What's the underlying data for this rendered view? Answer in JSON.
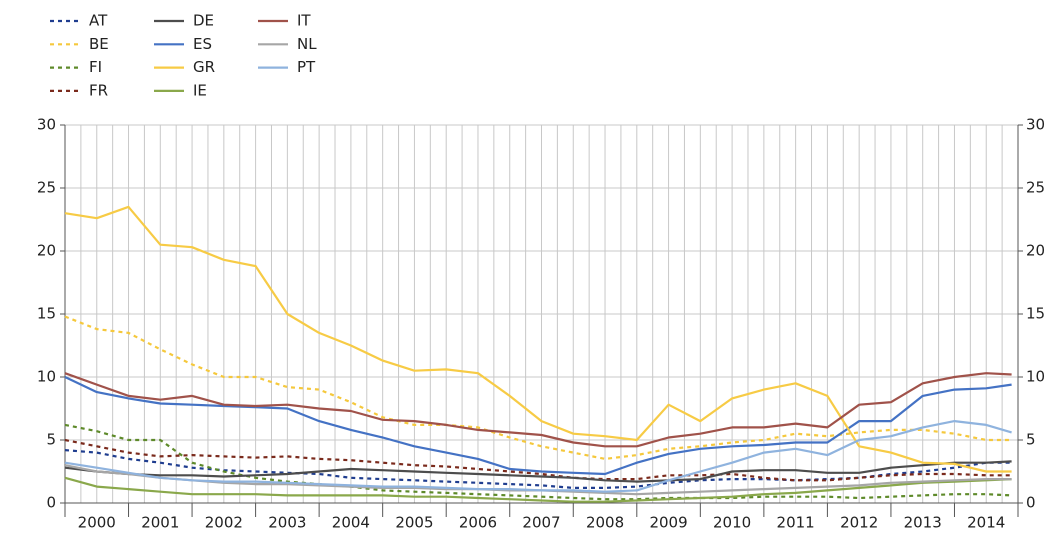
{
  "chart_data": {
    "type": "line",
    "x": [
      2000,
      2000.5,
      2001,
      2001.5,
      2002,
      2002.5,
      2003,
      2003.5,
      2004,
      2004.5,
      2005,
      2005.5,
      2006,
      2006.5,
      2007,
      2007.5,
      2008,
      2008.5,
      2009,
      2009.5,
      2010,
      2010.5,
      2011,
      2011.5,
      2012,
      2012.5,
      2013,
      2013.5,
      2014,
      2014.5,
      2014.9
    ],
    "xlim": [
      2000,
      2015
    ],
    "xticks": [
      {
        "value": 2000.5,
        "label": "2000"
      },
      {
        "value": 2001.5,
        "label": "2001"
      },
      {
        "value": 2002.5,
        "label": "2002"
      },
      {
        "value": 2003.5,
        "label": "2003"
      },
      {
        "value": 2004.5,
        "label": "2004"
      },
      {
        "value": 2005.5,
        "label": "2005"
      },
      {
        "value": 2006.5,
        "label": "2006"
      },
      {
        "value": 2007.5,
        "label": "2007"
      },
      {
        "value": 2008.5,
        "label": "2008"
      },
      {
        "value": 2009.5,
        "label": "2009"
      },
      {
        "value": 2010.5,
        "label": "2010"
      },
      {
        "value": 2011.5,
        "label": "2011"
      },
      {
        "value": 2012.5,
        "label": "2012"
      },
      {
        "value": 2013.5,
        "label": "2013"
      },
      {
        "value": 2014.5,
        "label": "2014"
      }
    ],
    "ylim": [
      0,
      30
    ],
    "yticks": [
      0,
      5,
      10,
      15,
      20,
      25,
      30
    ],
    "y2lim": [
      0,
      30
    ],
    "y2ticks": [
      0,
      5,
      10,
      15,
      20,
      25,
      30
    ],
    "grid": true,
    "series": [
      {
        "name": "AT",
        "color": "#1f3d8f",
        "dashed": true,
        "values": [
          4.2,
          4.0,
          3.5,
          3.2,
          2.8,
          2.6,
          2.5,
          2.4,
          2.3,
          2.0,
          1.9,
          1.8,
          1.7,
          1.6,
          1.5,
          1.4,
          1.2,
          1.2,
          1.3,
          1.6,
          1.8,
          1.9,
          1.9,
          1.8,
          1.9,
          2.0,
          2.3,
          2.5,
          2.8,
          3.2,
          3.2
        ]
      },
      {
        "name": "BE",
        "color": "#f5c83c",
        "dashed": true,
        "values": [
          14.8,
          13.8,
          13.5,
          12.2,
          11,
          10,
          10,
          9.2,
          9.0,
          8,
          6.8,
          6.2,
          6.2,
          6.0,
          5.2,
          4.5,
          4.0,
          3.5,
          3.8,
          4.3,
          4.5,
          4.8,
          5.0,
          5.5,
          5.3,
          5.6,
          5.8,
          5.8,
          5.5,
          5.0,
          5.0
        ]
      },
      {
        "name": "FI",
        "color": "#5e8a2a",
        "dashed": true,
        "values": [
          6.2,
          5.7,
          5.0,
          5.0,
          3.2,
          2.5,
          2.0,
          1.7,
          1.5,
          1.3,
          1.0,
          0.9,
          0.8,
          0.7,
          0.6,
          0.5,
          0.4,
          0.3,
          0.3,
          0.4,
          0.4,
          0.4,
          0.5,
          0.5,
          0.5,
          0.4,
          0.5,
          0.6,
          0.7,
          0.7,
          0.6
        ]
      },
      {
        "name": "FR",
        "color": "#7a2a1c",
        "dashed": true,
        "values": [
          5.0,
          4.5,
          4.0,
          3.7,
          3.8,
          3.7,
          3.6,
          3.7,
          3.5,
          3.4,
          3.2,
          3.0,
          2.9,
          2.7,
          2.5,
          2.3,
          2.0,
          1.9,
          1.9,
          2.2,
          2.2,
          2.3,
          2.0,
          1.8,
          1.8,
          2.0,
          2.2,
          2.3,
          2.3,
          2.2,
          2.2
        ]
      },
      {
        "name": "DE",
        "color": "#4d4d4d",
        "values": [
          2.8,
          2.5,
          2.3,
          2.2,
          2.2,
          2.1,
          2.2,
          2.3,
          2.5,
          2.7,
          2.6,
          2.5,
          2.4,
          2.3,
          2.2,
          2.1,
          2.0,
          1.8,
          1.7,
          1.8,
          1.9,
          2.5,
          2.6,
          2.6,
          2.4,
          2.4,
          2.8,
          3.0,
          3.2,
          3.2,
          3.3
        ]
      },
      {
        "name": "ES",
        "color": "#4472c4",
        "values": [
          10.0,
          8.8,
          8.3,
          7.9,
          7.8,
          7.7,
          7.6,
          7.5,
          6.5,
          5.8,
          5.2,
          4.5,
          4.0,
          3.5,
          2.7,
          2.5,
          2.4,
          2.3,
          3.2,
          3.9,
          4.3,
          4.5,
          4.6,
          4.8,
          4.8,
          6.5,
          6.5,
          8.5,
          9.0,
          9.1,
          9.4
        ]
      },
      {
        "name": "GR",
        "color": "#f7cb45",
        "values": [
          23,
          22.6,
          23.5,
          20.5,
          20.3,
          19.3,
          18.8,
          15,
          13.5,
          12.5,
          11.3,
          10.5,
          10.6,
          10.3,
          8.5,
          6.5,
          5.5,
          5.3,
          5.0,
          7.8,
          6.5,
          8.3,
          9.0,
          9.5,
          8.5,
          4.5,
          4.0,
          3.2,
          3.1,
          2.5,
          2.5
        ]
      },
      {
        "name": "IE",
        "color": "#8aa84b",
        "values": [
          2.0,
          1.3,
          1.1,
          0.9,
          0.7,
          0.7,
          0.7,
          0.6,
          0.6,
          0.6,
          0.6,
          0.5,
          0.5,
          0.4,
          0.3,
          0.2,
          0.1,
          0.1,
          0.2,
          0.3,
          0.4,
          0.5,
          0.7,
          0.8,
          1.0,
          1.2,
          1.4,
          1.6,
          1.7,
          1.8,
          1.9
        ]
      },
      {
        "name": "IT",
        "color": "#a0524a",
        "values": [
          10.3,
          9.4,
          8.5,
          8.2,
          8.5,
          7.8,
          7.7,
          7.8,
          7.5,
          7.3,
          6.6,
          6.5,
          6.2,
          5.8,
          5.6,
          5.4,
          4.8,
          4.5,
          4.5,
          5.2,
          5.5,
          6.0,
          6.0,
          6.3,
          6.0,
          7.8,
          8.0,
          9.5,
          10.0,
          10.3,
          10.2
        ]
      },
      {
        "name": "NL",
        "color": "#a6a6a6",
        "values": [
          3.0,
          2.5,
          2.3,
          2.0,
          1.8,
          1.6,
          1.5,
          1.5,
          1.4,
          1.3,
          1.2,
          1.2,
          1.1,
          1.1,
          1.0,
          1.0,
          0.9,
          0.8,
          0.7,
          0.8,
          0.9,
          1.0,
          1.1,
          1.2,
          1.3,
          1.4,
          1.6,
          1.7,
          1.8,
          1.9,
          1.9
        ]
      },
      {
        "name": "PT",
        "color": "#8fb3de",
        "values": [
          3.2,
          2.8,
          2.4,
          2.0,
          1.8,
          1.7,
          1.7,
          1.6,
          1.5,
          1.4,
          1.3,
          1.3,
          1.2,
          1.1,
          1.1,
          1.0,
          1.0,
          0.9,
          1.0,
          1.8,
          2.5,
          3.2,
          4.0,
          4.3,
          3.8,
          5.0,
          5.3,
          6.0,
          6.5,
          6.2,
          5.6
        ]
      }
    ]
  }
}
